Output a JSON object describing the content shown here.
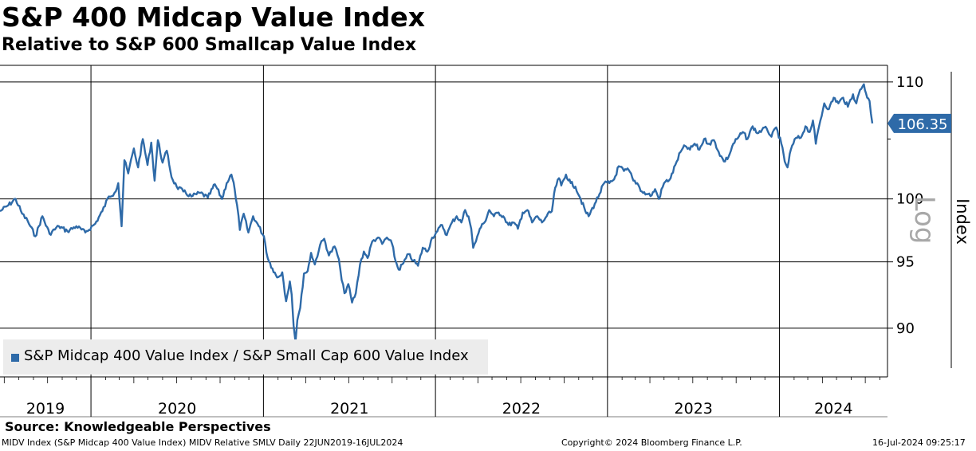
{
  "header": {
    "title": "S&P 400 Midcap Value Index",
    "subtitle": "Relative to S&P 600 Smallcap Value Index"
  },
  "axis": {
    "right_label": "Index",
    "scale_label": "Log"
  },
  "legend": {
    "label": "S&P Midcap 400 Value Index / S&P Small Cap 600 Value Index"
  },
  "last_value": {
    "text": "106.35",
    "value": 106.35
  },
  "source": "Source: Knowledgeable Perspectives",
  "footer": {
    "left": "MIDV Index (S&P Midcap 400 Value Index) MIDV Relative SMLV  Daily 22JUN2019-16JUL2024",
    "center": "Copyright© 2024 Bloomberg Finance L.P.",
    "right": "16-Jul-2024 09:25:17"
  },
  "colors": {
    "series": "#2E6AA8",
    "grid": "#000000",
    "legend_bg": "#ececec"
  },
  "chart_data": {
    "type": "line",
    "title": "S&P 400 Midcap Value Index",
    "subtitle": "Relative to S&P 600 Smallcap Value Index",
    "ylabel": "Index",
    "yscale": "log",
    "ylim": [
      86.5,
      111.5
    ],
    "yticks": [
      90,
      95,
      100,
      110
    ],
    "xlim": [
      "2019-06-22",
      "2024-07-16"
    ],
    "xticks": [
      "2019",
      "2020",
      "2021",
      "2022",
      "2023",
      "2024"
    ],
    "grid": true,
    "legend_position": "bottom-left",
    "series": [
      {
        "name": "S&P Midcap 400 Value Index / S&P Small Cap 600 Value Index",
        "points": [
          [
            "2019-06-22",
            99.0
          ],
          [
            "2019-07-10",
            99.5
          ],
          [
            "2019-07-25",
            100.0
          ],
          [
            "2019-08-08",
            98.8
          ],
          [
            "2019-08-20",
            98.2
          ],
          [
            "2019-09-05",
            97.0
          ],
          [
            "2019-09-20",
            98.6
          ],
          [
            "2019-10-05",
            97.2
          ],
          [
            "2019-10-25",
            97.8
          ],
          [
            "2019-11-12",
            97.4
          ],
          [
            "2019-12-01",
            97.8
          ],
          [
            "2019-12-20",
            97.3
          ],
          [
            "2020-01-10",
            98.0
          ],
          [
            "2020-01-25",
            99.0
          ],
          [
            "2020-02-08",
            100.2
          ],
          [
            "2020-02-20",
            100.5
          ],
          [
            "2020-02-28",
            101.3
          ],
          [
            "2020-03-06",
            97.8
          ],
          [
            "2020-03-12",
            103.2
          ],
          [
            "2020-03-20",
            102.1
          ],
          [
            "2020-04-01",
            104.2
          ],
          [
            "2020-04-10",
            102.6
          ],
          [
            "2020-04-20",
            105.0
          ],
          [
            "2020-04-30",
            102.8
          ],
          [
            "2020-05-08",
            104.7
          ],
          [
            "2020-05-15",
            101.5
          ],
          [
            "2020-05-22",
            104.9
          ],
          [
            "2020-06-01",
            103.0
          ],
          [
            "2020-06-10",
            104.0
          ],
          [
            "2020-06-20",
            101.8
          ],
          [
            "2020-07-01",
            101.0
          ],
          [
            "2020-07-15",
            100.6
          ],
          [
            "2020-08-01",
            100.2
          ],
          [
            "2020-08-20",
            100.5
          ],
          [
            "2020-09-05",
            100.1
          ],
          [
            "2020-09-20",
            101.2
          ],
          [
            "2020-10-05",
            100.0
          ],
          [
            "2020-10-15",
            101.3
          ],
          [
            "2020-10-25",
            102.0
          ],
          [
            "2020-11-01",
            100.8
          ],
          [
            "2020-11-06",
            99.5
          ],
          [
            "2020-11-12",
            97.5
          ],
          [
            "2020-11-20",
            98.8
          ],
          [
            "2020-11-30",
            97.3
          ],
          [
            "2020-12-10",
            98.6
          ],
          [
            "2020-12-22",
            97.8
          ],
          [
            "2021-01-02",
            97.0
          ],
          [
            "2021-01-10",
            95.3
          ],
          [
            "2021-01-20",
            94.5
          ],
          [
            "2021-01-30",
            93.8
          ],
          [
            "2021-02-10",
            94.2
          ],
          [
            "2021-02-18",
            92.0
          ],
          [
            "2021-02-26",
            93.5
          ],
          [
            "2021-03-02",
            92.5
          ],
          [
            "2021-03-06",
            90.2
          ],
          [
            "2021-03-10",
            89.0
          ],
          [
            "2021-03-14",
            90.6
          ],
          [
            "2021-03-20",
            91.5
          ],
          [
            "2021-03-28",
            94.1
          ],
          [
            "2021-04-05",
            94.3
          ],
          [
            "2021-04-12",
            95.7
          ],
          [
            "2021-04-20",
            94.8
          ],
          [
            "2021-05-01",
            96.3
          ],
          [
            "2021-05-10",
            96.8
          ],
          [
            "2021-05-20",
            95.5
          ],
          [
            "2021-06-01",
            96.2
          ],
          [
            "2021-06-10",
            95.2
          ],
          [
            "2021-06-16",
            93.6
          ],
          [
            "2021-06-22",
            92.6
          ],
          [
            "2021-06-30",
            93.3
          ],
          [
            "2021-07-08",
            91.9
          ],
          [
            "2021-07-16",
            92.6
          ],
          [
            "2021-07-25",
            94.8
          ],
          [
            "2021-08-02",
            95.8
          ],
          [
            "2021-08-10",
            95.3
          ],
          [
            "2021-08-20",
            96.6
          ],
          [
            "2021-09-01",
            96.9
          ],
          [
            "2021-09-10",
            96.4
          ],
          [
            "2021-09-20",
            96.9
          ],
          [
            "2021-10-01",
            96.4
          ],
          [
            "2021-10-08",
            95.1
          ],
          [
            "2021-10-15",
            94.4
          ],
          [
            "2021-10-25",
            94.9
          ],
          [
            "2021-11-05",
            95.6
          ],
          [
            "2021-11-15",
            95.1
          ],
          [
            "2021-11-25",
            94.7
          ],
          [
            "2021-12-05",
            96.1
          ],
          [
            "2021-12-15",
            95.8
          ],
          [
            "2021-12-25",
            96.9
          ],
          [
            "2022-01-05",
            97.4
          ],
          [
            "2022-01-15",
            97.9
          ],
          [
            "2022-01-25",
            97.1
          ],
          [
            "2022-02-05",
            98.1
          ],
          [
            "2022-02-15",
            98.6
          ],
          [
            "2022-02-25",
            98.1
          ],
          [
            "2022-03-05",
            99.1
          ],
          [
            "2022-03-12",
            98.6
          ],
          [
            "2022-03-18",
            97.6
          ],
          [
            "2022-03-22",
            96.1
          ],
          [
            "2022-03-28",
            96.6
          ],
          [
            "2022-04-05",
            97.6
          ],
          [
            "2022-04-15",
            98.1
          ],
          [
            "2022-04-25",
            99.1
          ],
          [
            "2022-05-05",
            98.6
          ],
          [
            "2022-05-15",
            98.9
          ],
          [
            "2022-05-25",
            98.6
          ],
          [
            "2022-06-05",
            97.9
          ],
          [
            "2022-06-15",
            98.1
          ],
          [
            "2022-06-25",
            97.6
          ],
          [
            "2022-07-05",
            98.9
          ],
          [
            "2022-07-15",
            99.1
          ],
          [
            "2022-07-25",
            98.1
          ],
          [
            "2022-08-05",
            98.6
          ],
          [
            "2022-08-15",
            98.1
          ],
          [
            "2022-08-25",
            98.6
          ],
          [
            "2022-09-05",
            99.0
          ],
          [
            "2022-09-12",
            100.9
          ],
          [
            "2022-09-20",
            101.7
          ],
          [
            "2022-09-25",
            101.1
          ],
          [
            "2022-10-05",
            102.0
          ],
          [
            "2022-10-15",
            101.3
          ],
          [
            "2022-10-25",
            101.0
          ],
          [
            "2022-11-05",
            100.0
          ],
          [
            "2022-11-15",
            99.0
          ],
          [
            "2022-11-22",
            98.6
          ],
          [
            "2022-12-05",
            99.6
          ],
          [
            "2022-12-15",
            100.4
          ],
          [
            "2022-12-25",
            101.3
          ],
          [
            "2023-01-05",
            101.3
          ],
          [
            "2023-01-15",
            101.6
          ],
          [
            "2023-01-25",
            102.7
          ],
          [
            "2023-02-05",
            102.3
          ],
          [
            "2023-02-15",
            102.4
          ],
          [
            "2023-02-25",
            101.5
          ],
          [
            "2023-03-05",
            101.3
          ],
          [
            "2023-03-15",
            100.6
          ],
          [
            "2023-03-25",
            100.4
          ],
          [
            "2023-04-05",
            100.3
          ],
          [
            "2023-04-12",
            100.8
          ],
          [
            "2023-04-20",
            100.0
          ],
          [
            "2023-05-01",
            101.3
          ],
          [
            "2023-05-15",
            101.7
          ],
          [
            "2023-05-25",
            102.8
          ],
          [
            "2023-06-05",
            103.9
          ],
          [
            "2023-06-15",
            104.4
          ],
          [
            "2023-06-25",
            104.1
          ],
          [
            "2023-07-05",
            104.6
          ],
          [
            "2023-07-15",
            104.1
          ],
          [
            "2023-07-25",
            105.0
          ],
          [
            "2023-08-05",
            104.6
          ],
          [
            "2023-08-15",
            104.9
          ],
          [
            "2023-08-25",
            103.9
          ],
          [
            "2023-09-05",
            103.1
          ],
          [
            "2023-09-15",
            103.5
          ],
          [
            "2023-09-25",
            104.6
          ],
          [
            "2023-10-05",
            105.1
          ],
          [
            "2023-10-15",
            105.6
          ],
          [
            "2023-10-25",
            105.0
          ],
          [
            "2023-11-05",
            106.1
          ],
          [
            "2023-11-15",
            105.5
          ],
          [
            "2023-11-25",
            105.8
          ],
          [
            "2023-12-05",
            105.9
          ],
          [
            "2023-12-15",
            105.2
          ],
          [
            "2023-12-25",
            106.0
          ],
          [
            "2024-01-05",
            104.6
          ],
          [
            "2024-01-12",
            103.1
          ],
          [
            "2024-01-18",
            102.6
          ],
          [
            "2024-01-25",
            104.1
          ],
          [
            "2024-02-05",
            105.1
          ],
          [
            "2024-02-15",
            105.1
          ],
          [
            "2024-02-25",
            106.1
          ],
          [
            "2024-03-05",
            105.6
          ],
          [
            "2024-03-12",
            106.6
          ],
          [
            "2024-03-18",
            104.6
          ],
          [
            "2024-03-25",
            106.1
          ],
          [
            "2024-04-05",
            108.1
          ],
          [
            "2024-04-15",
            107.6
          ],
          [
            "2024-04-25",
            108.6
          ],
          [
            "2024-05-05",
            108.1
          ],
          [
            "2024-05-15",
            108.6
          ],
          [
            "2024-05-25",
            107.8
          ],
          [
            "2024-06-05",
            108.9
          ],
          [
            "2024-06-12",
            108.1
          ],
          [
            "2024-06-20",
            109.3
          ],
          [
            "2024-06-28",
            109.8
          ],
          [
            "2024-07-05",
            108.6
          ],
          [
            "2024-07-10",
            108.3
          ],
          [
            "2024-07-16",
            106.35
          ]
        ]
      }
    ]
  }
}
